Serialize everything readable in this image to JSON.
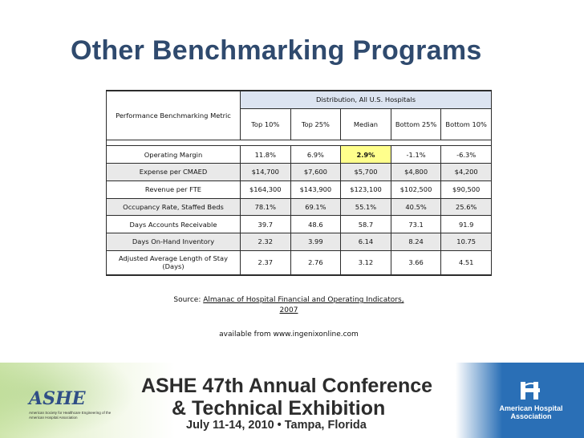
{
  "slide": {
    "title": "Other Benchmarking Programs"
  },
  "table": {
    "metric_header": "Performance Benchmarking Metric",
    "group_header": "Distribution, All U.S. Hospitals",
    "columns": [
      "Top 10%",
      "Top 25%",
      "Median",
      "Bottom 25%",
      "Bottom 10%"
    ],
    "rows": [
      {
        "metric": "Operating Margin",
        "values": [
          "11.8%",
          "6.9%",
          "2.9%",
          "-1.1%",
          "-6.3%"
        ],
        "highlight_index": 2
      },
      {
        "metric": "Expense per CMAED",
        "values": [
          "$14,700",
          "$7,600",
          "$5,700",
          "$4,800",
          "$4,200"
        ]
      },
      {
        "metric": "Revenue per FTE",
        "values": [
          "$164,300",
          "$143,900",
          "$123,100",
          "$102,500",
          "$90,500"
        ]
      },
      {
        "metric": "Occupancy Rate, Staffed Beds",
        "values": [
          "78.1%",
          "69.1%",
          "55.1%",
          "40.5%",
          "25.6%"
        ]
      },
      {
        "metric": "Days Accounts Receivable",
        "values": [
          "39.7",
          "48.6",
          "58.7",
          "73.1",
          "91.9"
        ]
      },
      {
        "metric": "Days On-Hand Inventory",
        "values": [
          "2.32",
          "3.99",
          "6.14",
          "8.24",
          "10.75"
        ]
      },
      {
        "metric": "Adjusted Average Length of Stay (Days)",
        "values": [
          "2.37",
          "2.76",
          "3.12",
          "3.66",
          "4.51"
        ]
      }
    ],
    "colors": {
      "header_blue": "#dce4f1",
      "row_grey": "#e9e9e9",
      "highlight": "#ffff8c"
    }
  },
  "source": {
    "prefix": "Source: ",
    "link_text": "Almanac of Hospital Financial and Operating Indicators, 2007",
    "available": "available from www.ingenixonline.com"
  },
  "banner": {
    "ashe_logo": "ASHE",
    "ashe_caption": "American Society for Healthcare Engineering of the American Hospital Association",
    "line1": "ASHE 47th Annual Conference",
    "line2": "& Technical Exhibition",
    "line3": "July 11-14, 2010 • Tampa, Florida",
    "aha_name": "American Hospital Association",
    "title_color": "#2f4a6e"
  }
}
